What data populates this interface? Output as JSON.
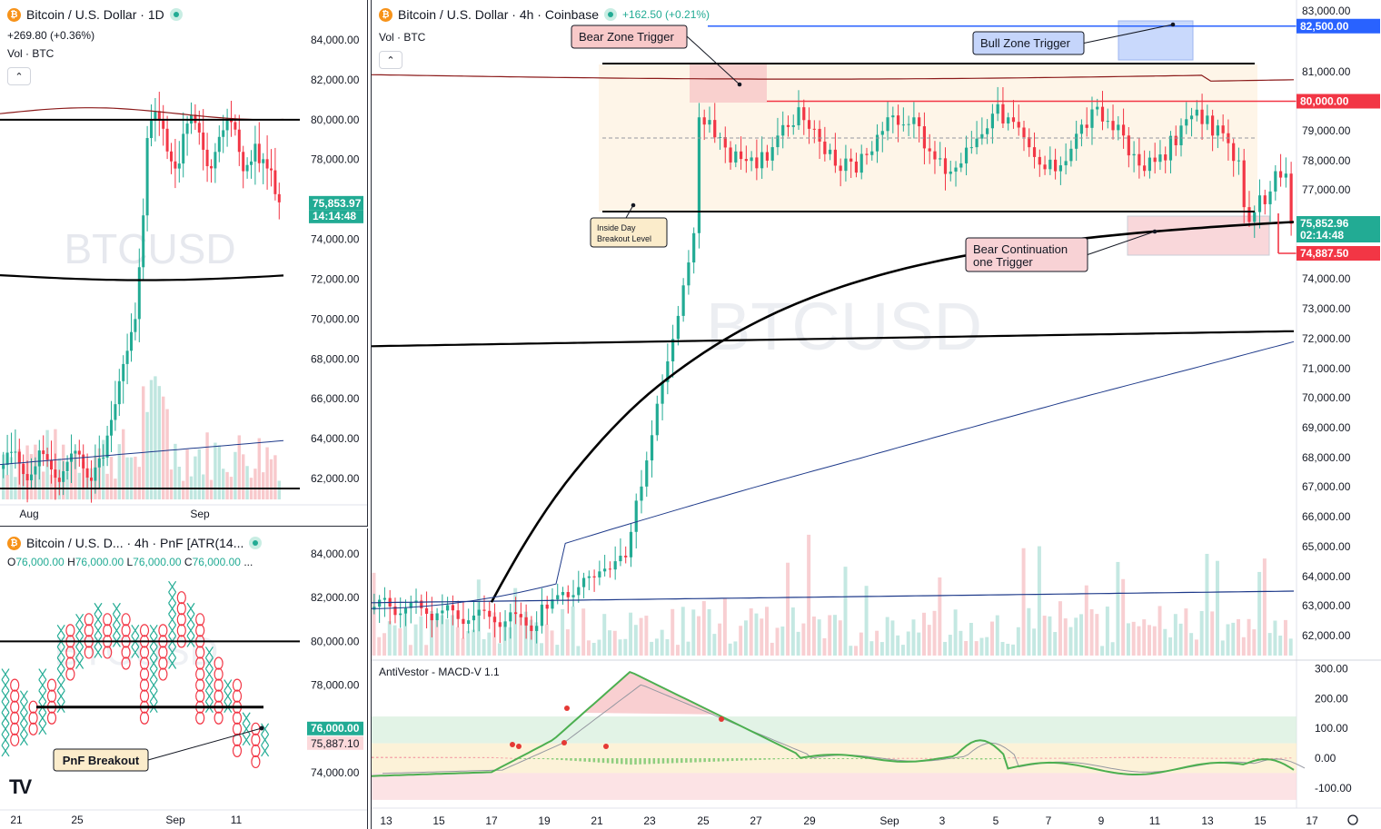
{
  "colors": {
    "up": "#22ab94",
    "down": "#f23645",
    "black": "#000000",
    "ma_red": "#8b1a1a",
    "ma_blue": "#1e3a8a",
    "bull_blue": "#2962ff",
    "bear_red": "#f23645",
    "neutral": "#131722"
  },
  "daily": {
    "title": "Bitcoin / U.S. Dollar · 1D",
    "change": "+269.80 (+0.36%)",
    "vol_label": "Vol · BTC",
    "watermark": "BTCUSD",
    "price_badge": "75,853.97",
    "time_badge": "14:14:48",
    "y_ticks": [
      "84,000.00",
      "82,000.00",
      "80,000.00",
      "78,000.00",
      "74,000.00",
      "72,000.00",
      "70,000.00",
      "68,000.00",
      "66,000.00",
      "64,000.00",
      "62,000.00"
    ],
    "x_ticks": [
      "Aug",
      "Sep"
    ]
  },
  "pnf": {
    "title": "Bitcoin / U.S. D... · 4h · PnF [ATR(14...",
    "ohlc_o": "76,000.00",
    "ohlc_h": "76,000.00",
    "ohlc_l": "76,000.00",
    "ohlc_c": "76,000.00",
    "o_label": "O",
    "h_label": "H",
    "l_label": "L",
    "c_label": "C",
    "ellipsis": "...",
    "y_ticks": [
      "84,000.00",
      "82,000.00",
      "80,000.00",
      "78,000.00",
      "74,000.00"
    ],
    "badge_price": "76,000.00",
    "badge_low": "75,887.10",
    "x_ticks": [
      "21",
      "25",
      "Sep",
      "11"
    ],
    "annotation": "PnF Breakout",
    "logo": "TV"
  },
  "main": {
    "title": "Bitcoin / U.S. Dollar · 4h · Coinbase",
    "change": "+162.50 (+0.21%)",
    "vol_label": "Vol · BTC",
    "watermark": "BTCUSD",
    "y_ticks": [
      "83,000.00",
      "81,000.00",
      "79,000.00",
      "78,000.00",
      "77,000.00",
      "74,000.00",
      "73,000.00",
      "72,000.00",
      "71,000.00",
      "70,000.00",
      "69,000.00",
      "68,000.00",
      "67,000.00",
      "66,000.00",
      "65,000.00",
      "64,000.00",
      "63,000.00",
      "62,000.00"
    ],
    "badge_82500": "82,500.00",
    "badge_80000": "80,000.00",
    "badge_price": "75,852.96",
    "badge_time": "02:14:48",
    "badge_low": "74,887.50",
    "x_ticks": [
      "13",
      "15",
      "17",
      "19",
      "21",
      "23",
      "25",
      "27",
      "29",
      "Sep",
      "3",
      "5",
      "7",
      "9",
      "11",
      "13",
      "15",
      "17"
    ],
    "annotations": {
      "bear_zone": "Bear Zone Trigger",
      "bull_zone": "Bull Zone Trigger",
      "inside_day_1": "Inside Day",
      "inside_day_2": "Breakout Level",
      "bear_cont_1": "Bear Continuation",
      "bear_cont_2": "one Trigger"
    },
    "macd_title": "AntiVestor - MACD-V 1.1",
    "macd_ticks": [
      "300.00",
      "200.00",
      "100.00",
      "0.00",
      "-100.00"
    ]
  },
  "chart_data": [
    {
      "type": "line",
      "title": "Bitcoin / U.S. Dollar · 1D",
      "levels": [
        80000
      ],
      "last_price": 75853.97,
      "ylim": [
        61000,
        85000
      ]
    },
    {
      "type": "line",
      "title": "Bitcoin / U.S. Dollar · 4h · Coinbase",
      "levels": [
        82500,
        81200,
        80000,
        75300
      ],
      "last_price": 75852.96,
      "low_price": 74887.5,
      "ylim": [
        61500,
        83000
      ],
      "macd_range": [
        -130,
        320
      ]
    }
  ]
}
